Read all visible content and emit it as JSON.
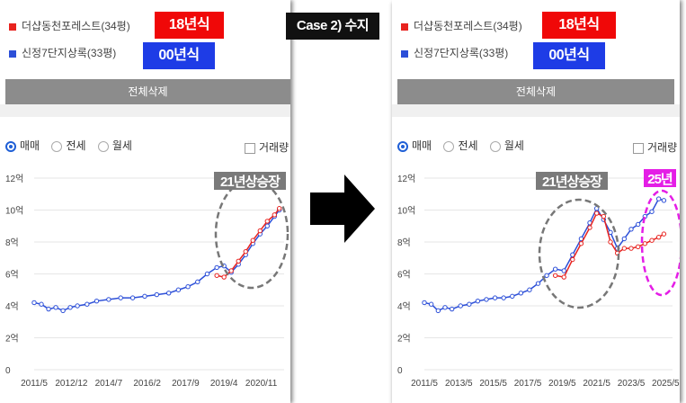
{
  "case_label": "Case 2) 수지",
  "left": {
    "legend": [
      {
        "name": "더샵동천포레스트(34평)",
        "color": "#e8231f"
      },
      {
        "name": "신정7단지상록(33평)",
        "color": "#2c4fd8"
      }
    ],
    "badges": [
      {
        "text": "18년식",
        "color": "#f00808"
      },
      {
        "text": "00년식",
        "color": "#1e3ce6"
      }
    ],
    "delete_label": "전체삭제",
    "radios": [
      "매매",
      "전세",
      "월세"
    ],
    "volume_label": "거래량",
    "annotation": "21년상승장"
  },
  "right": {
    "legend": [
      {
        "name": "더샵동천포레스트(34평)",
        "color": "#e8231f"
      },
      {
        "name": "신정7단지상록(33평)",
        "color": "#2c4fd8"
      }
    ],
    "badges": [
      {
        "text": "18년식",
        "color": "#f00808"
      },
      {
        "text": "00년식",
        "color": "#1e3ce6"
      }
    ],
    "delete_label": "전체삭제",
    "radios": [
      "매매",
      "전세",
      "월세"
    ],
    "volume_label": "거래량",
    "annotations": [
      "21년상승장",
      "25년"
    ]
  },
  "chart_data": [
    {
      "type": "line",
      "ylabel_ticks": [
        "0",
        "2억",
        "4억",
        "6억",
        "8억",
        "10억",
        "12억"
      ],
      "y_tick_values": [
        0,
        2,
        4,
        6,
        8,
        10,
        12
      ],
      "x_tick_labels": [
        "2011/5",
        "2012/12",
        "2014/7",
        "2016/2",
        "2017/9",
        "2019/4",
        "2020/11"
      ],
      "x_tick_values": [
        2011.4,
        2012.95,
        2014.5,
        2016.1,
        2017.7,
        2019.3,
        2020.85
      ],
      "xlim": [
        2011.4,
        2021.8
      ],
      "ylim": [
        0,
        12
      ],
      "series": [
        {
          "name": "신정7단지상록(33평)",
          "color": "#2c4fd8",
          "x": [
            2011.4,
            2011.7,
            2012.0,
            2012.3,
            2012.6,
            2012.9,
            2013.2,
            2013.6,
            2014.0,
            2014.5,
            2015.0,
            2015.5,
            2016.0,
            2016.5,
            2017.0,
            2017.4,
            2017.8,
            2018.2,
            2018.6,
            2019.0,
            2019.3,
            2019.6,
            2019.9,
            2020.2,
            2020.5,
            2020.8,
            2021.1,
            2021.4,
            2021.6
          ],
          "y": [
            4.2,
            4.1,
            3.8,
            3.9,
            3.7,
            3.9,
            4.0,
            4.1,
            4.3,
            4.4,
            4.5,
            4.5,
            4.6,
            4.7,
            4.8,
            5.0,
            5.2,
            5.5,
            6.0,
            6.4,
            6.5,
            6.1,
            6.6,
            7.2,
            7.9,
            8.5,
            9.0,
            9.6,
            10.0
          ]
        },
        {
          "name": "더샵동천포레스트(34평)",
          "color": "#e8231f",
          "x": [
            2019.0,
            2019.3,
            2019.6,
            2019.9,
            2020.2,
            2020.5,
            2020.8,
            2021.1,
            2021.4,
            2021.6
          ],
          "y": [
            5.9,
            5.8,
            6.2,
            6.8,
            7.4,
            8.1,
            8.7,
            9.3,
            9.7,
            10.1
          ]
        }
      ]
    },
    {
      "type": "line",
      "ylabel_ticks": [
        "0",
        "2억",
        "4억",
        "6억",
        "8억",
        "10억",
        "12억"
      ],
      "y_tick_values": [
        0,
        2,
        4,
        6,
        8,
        10,
        12
      ],
      "x_tick_labels": [
        "2011/5",
        "2013/5",
        "2015/5",
        "2017/5",
        "2019/5",
        "2021/5",
        "2023/5",
        "2025/5"
      ],
      "x_tick_values": [
        2011.4,
        2013.4,
        2015.4,
        2017.4,
        2019.4,
        2021.4,
        2023.4,
        2025.4
      ],
      "xlim": [
        2011.4,
        2025.8
      ],
      "ylim": [
        0,
        12
      ],
      "series": [
        {
          "name": "신정7단지상록(33평)",
          "color": "#2c4fd8",
          "x": [
            2011.4,
            2011.8,
            2012.2,
            2012.6,
            2013.0,
            2013.5,
            2014.0,
            2014.5,
            2015.0,
            2015.5,
            2016.0,
            2016.5,
            2017.0,
            2017.5,
            2018.0,
            2018.5,
            2019.0,
            2019.5,
            2020.0,
            2020.5,
            2021.0,
            2021.4,
            2021.8,
            2022.2,
            2022.6,
            2023.0,
            2023.4,
            2023.8,
            2024.2,
            2024.6,
            2025.0,
            2025.3
          ],
          "y": [
            4.2,
            4.1,
            3.7,
            3.9,
            3.8,
            4.0,
            4.1,
            4.3,
            4.4,
            4.5,
            4.5,
            4.6,
            4.8,
            5.0,
            5.4,
            5.9,
            6.3,
            6.2,
            7.2,
            8.2,
            9.2,
            10.1,
            9.4,
            8.6,
            7.6,
            8.2,
            8.8,
            9.1,
            9.6,
            9.9,
            10.7,
            10.6
          ]
        },
        {
          "name": "더샵동천포레스트(34평)",
          "color": "#e8231f",
          "x": [
            2019.0,
            2019.5,
            2020.0,
            2020.5,
            2021.0,
            2021.4,
            2021.8,
            2022.2,
            2022.6,
            2023.0,
            2023.4,
            2023.8,
            2024.2,
            2024.6,
            2025.0,
            2025.3
          ],
          "y": [
            5.9,
            5.8,
            6.9,
            7.9,
            8.9,
            9.8,
            9.6,
            8.0,
            7.3,
            7.6,
            7.6,
            7.7,
            7.9,
            8.1,
            8.3,
            8.5
          ]
        }
      ]
    }
  ]
}
